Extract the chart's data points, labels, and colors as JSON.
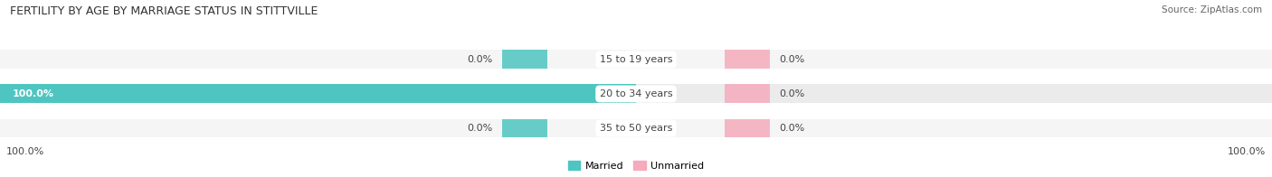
{
  "title": "FERTILITY BY AGE BY MARRIAGE STATUS IN STITTVILLE",
  "source": "Source: ZipAtlas.com",
  "rows": [
    {
      "label": "15 to 19 years",
      "married": 0.0,
      "unmarried": 0.0
    },
    {
      "label": "20 to 34 years",
      "married": 100.0,
      "unmarried": 0.0
    },
    {
      "label": "35 to 50 years",
      "married": 0.0,
      "unmarried": 0.0
    }
  ],
  "married_color": "#4EC5C1",
  "unmarried_color": "#F5ABBC",
  "bar_bg_color": "#EBEBEB",
  "bar_bg_color2": "#F5F5F5",
  "title_fontsize": 9,
  "label_fontsize": 8,
  "value_fontsize": 8,
  "tick_fontsize": 8,
  "source_fontsize": 7.5,
  "fig_width": 14.06,
  "fig_height": 1.96,
  "dpi": 100
}
